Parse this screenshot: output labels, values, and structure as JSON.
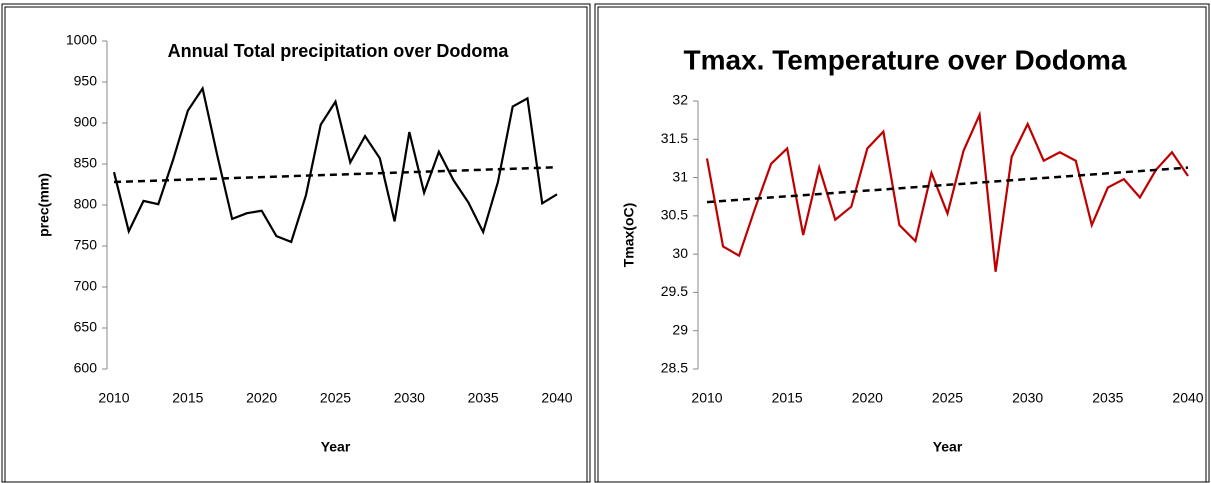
{
  "chart_data": [
    {
      "type": "line",
      "title": "Annual Total precipitation over Dodoma",
      "x_label": "Year",
      "y_label": "prec(mm)",
      "x": [
        2010,
        2011,
        2012,
        2013,
        2014,
        2015,
        2016,
        2017,
        2018,
        2019,
        2020,
        2021,
        2022,
        2023,
        2024,
        2025,
        2026,
        2027,
        2028,
        2029,
        2030,
        2031,
        2032,
        2033,
        2034,
        2035,
        2036,
        2037,
        2038,
        2039,
        2040
      ],
      "series": [
        {
          "color": "#000000",
          "values": [
            840,
            768,
            805,
            801,
            855,
            915,
            942,
            860,
            783,
            790,
            793,
            762,
            755,
            812,
            898,
            926,
            852,
            884,
            857,
            780,
            889,
            815,
            865,
            830,
            803,
            767,
            828,
            920,
            930,
            802,
            813
          ]
        }
      ],
      "trend": {
        "x": [
          2010,
          2040
        ],
        "values": [
          828,
          846
        ],
        "color": "#000000"
      },
      "xlim": [
        2010,
        2040
      ],
      "xticks": [
        2010,
        2015,
        2020,
        2025,
        2030,
        2035,
        2040
      ],
      "ylim": [
        600,
        1000
      ],
      "yticks": [
        600,
        650,
        700,
        750,
        800,
        850,
        900,
        950,
        1000
      ]
    },
    {
      "type": "line",
      "title": "Tmax. Temperature over Dodoma",
      "x_label": "Year",
      "y_label": "Tmax(oC)",
      "x": [
        2010,
        2011,
        2012,
        2013,
        2014,
        2015,
        2016,
        2017,
        2018,
        2019,
        2020,
        2021,
        2022,
        2023,
        2024,
        2025,
        2026,
        2027,
        2028,
        2029,
        2030,
        2031,
        2032,
        2033,
        2034,
        2035,
        2036,
        2037,
        2038,
        2039,
        2040
      ],
      "series": [
        {
          "color": "#c00000",
          "values": [
            31.25,
            30.1,
            29.98,
            30.6,
            31.18,
            31.38,
            30.25,
            31.13,
            30.45,
            30.62,
            31.38,
            31.6,
            30.38,
            30.17,
            31.06,
            30.53,
            31.35,
            31.82,
            29.77,
            31.27,
            31.7,
            31.22,
            31.33,
            31.22,
            30.38,
            30.87,
            30.98,
            30.74,
            31.1,
            31.33,
            31.02
          ]
        }
      ],
      "trend": {
        "x": [
          2010,
          2040
        ],
        "values": [
          30.68,
          31.13
        ],
        "color": "#000000"
      },
      "xlim": [
        2010,
        2040
      ],
      "xticks": [
        2010,
        2015,
        2020,
        2025,
        2030,
        2035,
        2040
      ],
      "ylim": [
        28.5,
        32
      ],
      "yticks": [
        28.5,
        29,
        29.5,
        30,
        30.5,
        31,
        31.5,
        32
      ]
    }
  ]
}
